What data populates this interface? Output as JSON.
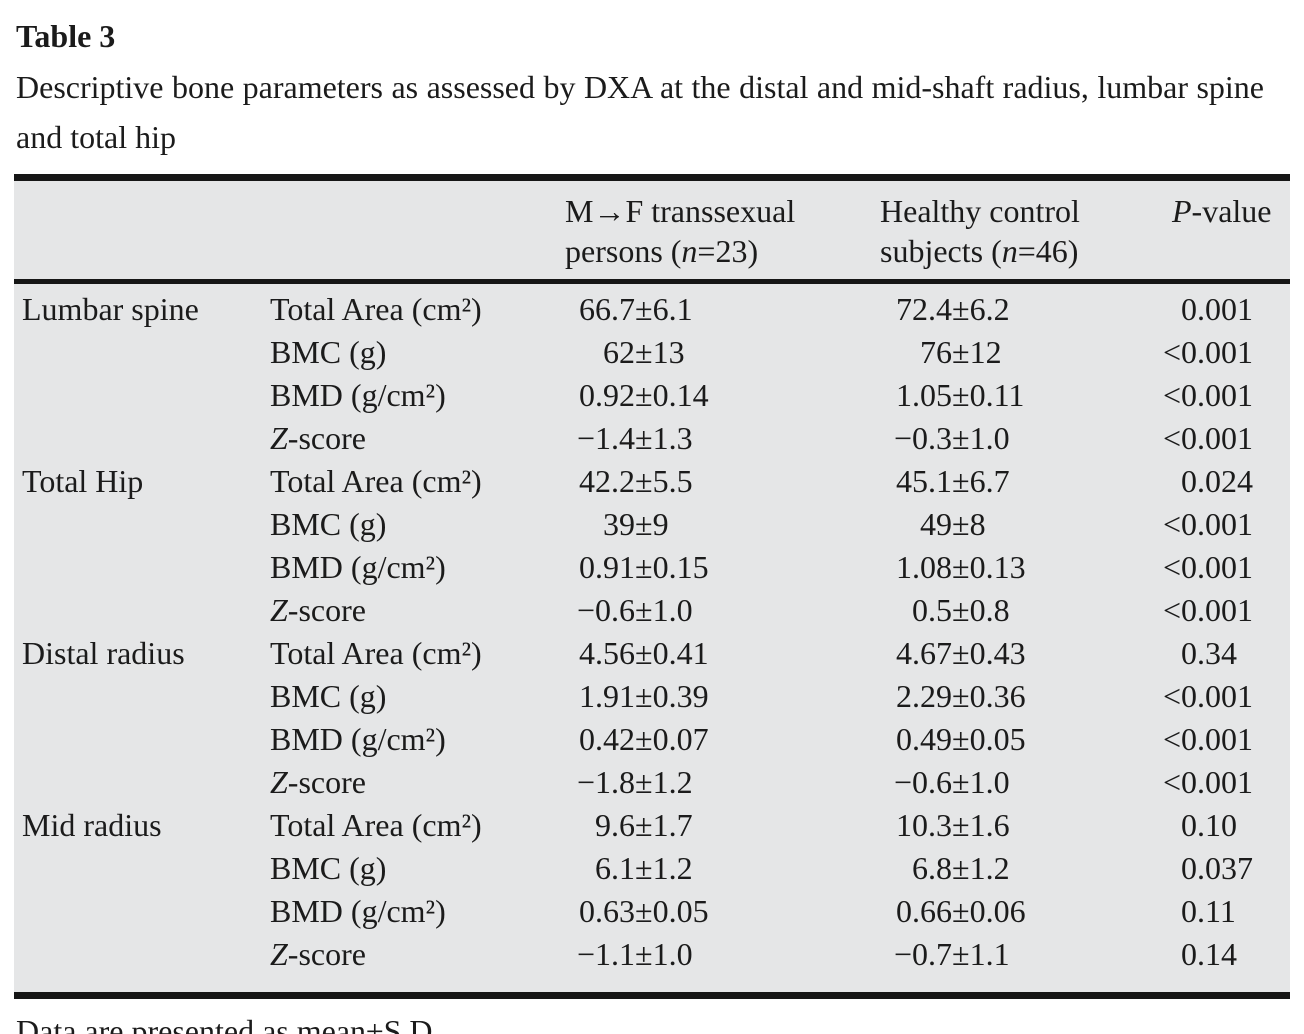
{
  "title": "Table 3",
  "caption": "Descriptive bone parameters as assessed by DXA at the distal and mid-shaft radius, lumbar spine and total hip",
  "table": {
    "header": {
      "group1": {
        "line1": "M→F transsexual",
        "line2_pre": "persons (",
        "line2_var": "n",
        "line2_post": "=23)"
      },
      "group2": {
        "line1": "Healthy control",
        "line2_pre": "subjects (",
        "line2_var": "n",
        "line2_post": "=46)"
      },
      "pvalue": {
        "var": "P",
        "post": "-value"
      }
    },
    "rows": [
      {
        "region": "Lumbar spine",
        "parameter": "Total Area (cm²)",
        "mtf": "66.7±6.1",
        "control": "72.4±6.2",
        "p": "0.001",
        "italicFirst": false
      },
      {
        "region": "",
        "parameter": "BMC (g)",
        "mtf": "62±13",
        "control": "76±12",
        "p": "<0.001",
        "italicFirst": false
      },
      {
        "region": "",
        "parameter": "BMD (g/cm²)",
        "mtf": "0.92±0.14",
        "control": "1.05±0.11",
        "p": "<0.001",
        "italicFirst": false
      },
      {
        "region": "",
        "parameter": "Z-score",
        "mtf": "−1.4±1.3",
        "control": "−0.3±1.0",
        "p": "<0.001",
        "italicFirst": true
      },
      {
        "region": "Total Hip",
        "parameter": "Total Area (cm²)",
        "mtf": "42.2±5.5",
        "control": "45.1±6.7",
        "p": "0.024",
        "italicFirst": false
      },
      {
        "region": "",
        "parameter": "BMC (g)",
        "mtf": "39±9",
        "control": "49±8",
        "p": "<0.001",
        "italicFirst": false
      },
      {
        "region": "",
        "parameter": "BMD (g/cm²)",
        "mtf": "0.91±0.15",
        "control": "1.08±0.13",
        "p": "<0.001",
        "italicFirst": false
      },
      {
        "region": "",
        "parameter": "Z-score",
        "mtf": "−0.6±1.0",
        "control": "0.5±0.8",
        "p": "<0.001",
        "italicFirst": true
      },
      {
        "region": "Distal radius",
        "parameter": "Total Area (cm²)",
        "mtf": "4.56±0.41",
        "control": "4.67±0.43",
        "p": "0.34",
        "italicFirst": false
      },
      {
        "region": "",
        "parameter": "BMC (g)",
        "mtf": "1.91±0.39",
        "control": "2.29±0.36",
        "p": "<0.001",
        "italicFirst": false
      },
      {
        "region": "",
        "parameter": "BMD (g/cm²)",
        "mtf": "0.42±0.07",
        "control": "0.49±0.05",
        "p": "<0.001",
        "italicFirst": false
      },
      {
        "region": "",
        "parameter": "Z-score",
        "mtf": "−1.8±1.2",
        "control": "−0.6±1.0",
        "p": "<0.001",
        "italicFirst": true
      },
      {
        "region": "Mid radius",
        "parameter": "Total Area (cm²)",
        "mtf": "9.6±1.7",
        "control": "10.3±1.6",
        "p": "0.10",
        "italicFirst": false
      },
      {
        "region": "",
        "parameter": "BMC (g)",
        "mtf": "6.1±1.2",
        "control": "6.8±1.2",
        "p": "0.037",
        "italicFirst": false
      },
      {
        "region": "",
        "parameter": "BMD (g/cm²)",
        "mtf": "0.63±0.05",
        "control": "0.66±0.06",
        "p": "0.11",
        "italicFirst": false
      },
      {
        "region": "",
        "parameter": "Z-score",
        "mtf": "−1.1±1.0",
        "control": "−0.7±1.1",
        "p": "0.14",
        "italicFirst": true
      }
    ]
  },
  "footnote": "Data are presented as mean±S.D."
}
